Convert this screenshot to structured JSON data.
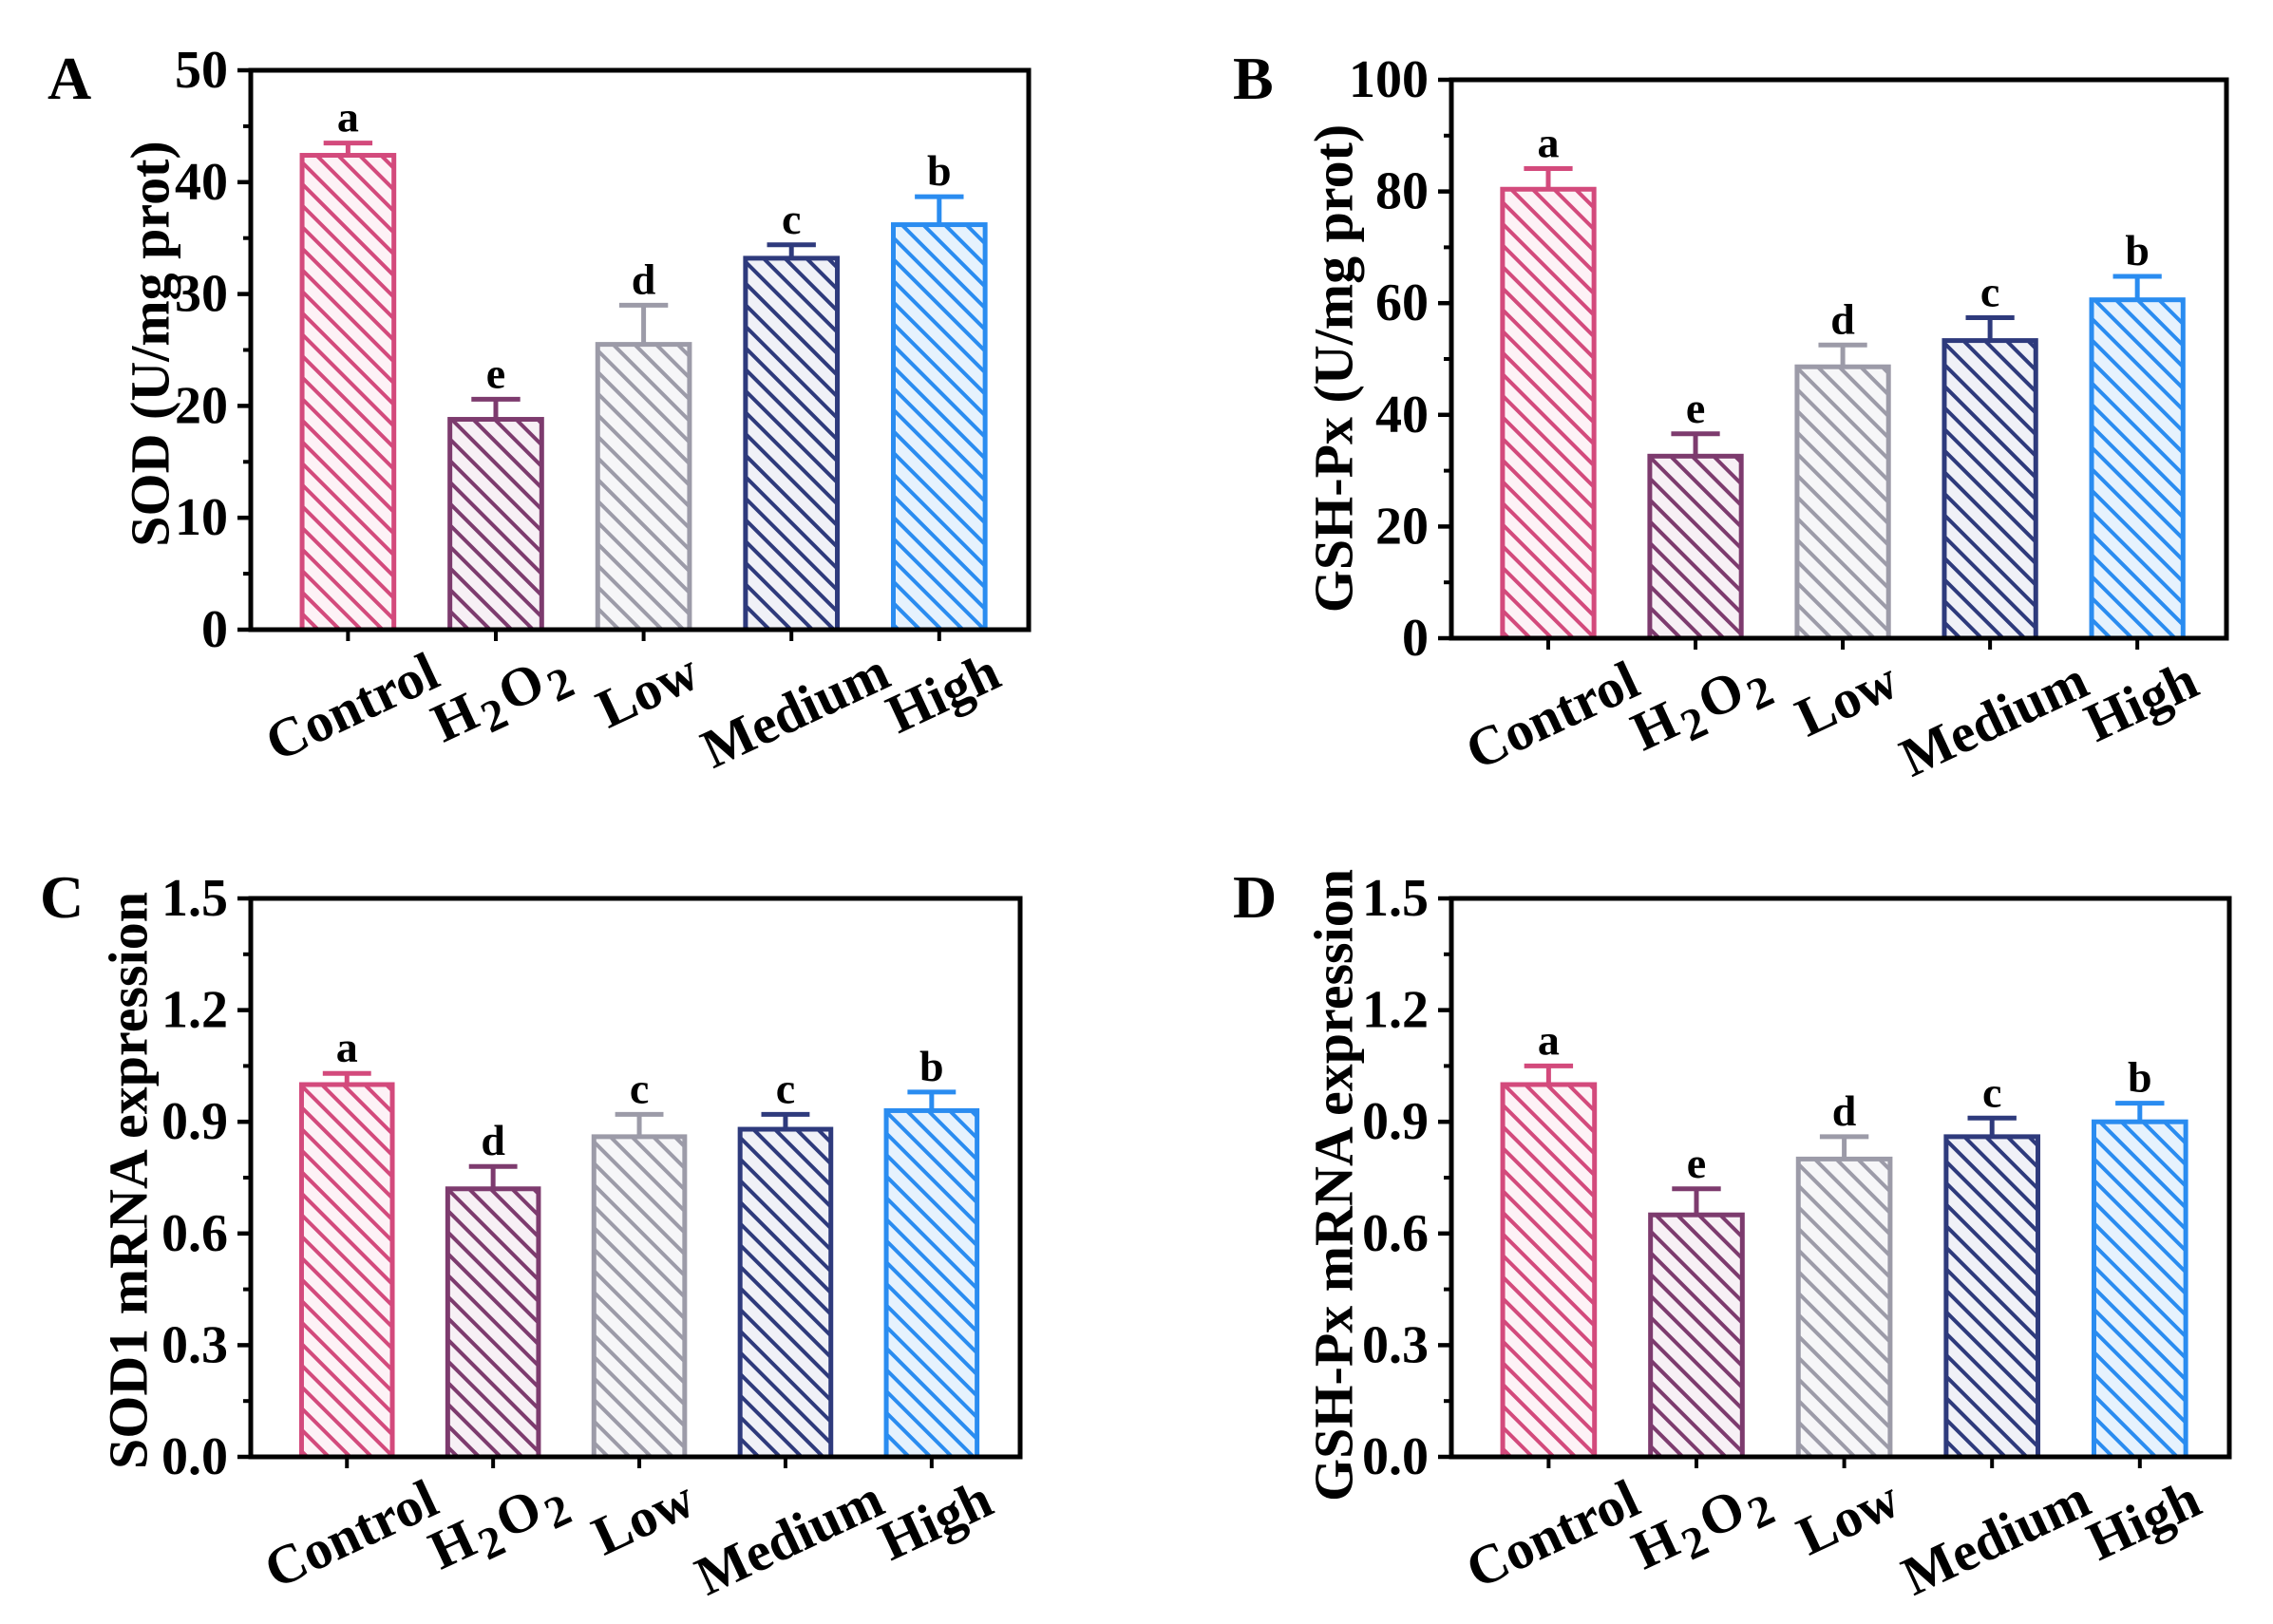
{
  "chart_data": [
    {
      "type": "bar",
      "panel_label": "A",
      "ylabel": "SOD (U/mg prot)",
      "categories": [
        "Control",
        "H2O2",
        "Low",
        "Medium",
        "High"
      ],
      "values": [
        42.4,
        18.8,
        25.5,
        33.2,
        36.2
      ],
      "error_upper": [
        1.1,
        1.8,
        3.5,
        1.2,
        2.5
      ],
      "significance_letters": [
        "a",
        "e",
        "d",
        "c",
        "b"
      ],
      "ylim": [
        0,
        50
      ],
      "yticks": [
        0,
        10,
        20,
        30,
        40,
        50
      ],
      "ytick_labels": [
        "0",
        "10",
        "20",
        "30",
        "40",
        "50"
      ],
      "bar_colors": [
        "#d34a7c",
        "#7d3b6e",
        "#9c9ba8",
        "#2e3a7c",
        "#2a8cf0"
      ],
      "bar_fill_colors": [
        "#fdf2f6",
        "#f7f0f5",
        "#f6f6f8",
        "#f0f1f7",
        "#e6f2fd"
      ],
      "fill_pattern": "diagonal-hatch",
      "grid": false,
      "legend": "none"
    },
    {
      "type": "bar",
      "panel_label": "B",
      "ylabel": "GSH-Px (U/mg prot)",
      "categories": [
        "Control",
        "H2O2",
        "Low",
        "Medium",
        "High"
      ],
      "values": [
        80.4,
        32.6,
        48.6,
        53.3,
        60.6
      ],
      "error_upper": [
        3.7,
        4.0,
        3.9,
        4.1,
        4.2
      ],
      "significance_letters": [
        "a",
        "e",
        "d",
        "c",
        "b"
      ],
      "ylim": [
        0,
        100
      ],
      "yticks": [
        0,
        20,
        40,
        60,
        80,
        100
      ],
      "ytick_labels": [
        "0",
        "20",
        "40",
        "60",
        "80",
        "100"
      ],
      "bar_colors": [
        "#d34a7c",
        "#7d3b6e",
        "#9c9ba8",
        "#2e3a7c",
        "#2a8cf0"
      ],
      "bar_fill_colors": [
        "#fdf2f6",
        "#f7f0f5",
        "#f6f6f8",
        "#f0f1f7",
        "#e6f2fd"
      ],
      "fill_pattern": "diagonal-hatch",
      "grid": false,
      "legend": "none"
    },
    {
      "type": "bar",
      "panel_label": "C",
      "ylabel": "SOD1 mRNA expression",
      "categories": [
        "Control",
        "H2O2",
        "Low",
        "Medium",
        "High"
      ],
      "values": [
        1.0,
        0.72,
        0.86,
        0.88,
        0.93
      ],
      "error_upper": [
        0.03,
        0.06,
        0.06,
        0.04,
        0.05
      ],
      "significance_letters": [
        "a",
        "d",
        "c",
        "c",
        "b"
      ],
      "ylim": [
        0,
        1.5
      ],
      "yticks": [
        0,
        0.3,
        0.6,
        0.9,
        1.2,
        1.5
      ],
      "ytick_labels": [
        "0.0",
        "0.3",
        "0.6",
        "0.9",
        "1.2",
        "1.5"
      ],
      "bar_colors": [
        "#d34a7c",
        "#7d3b6e",
        "#9c9ba8",
        "#2e3a7c",
        "#2a8cf0"
      ],
      "bar_fill_colors": [
        "#fdf2f6",
        "#f7f0f5",
        "#f6f6f8",
        "#f0f1f7",
        "#e6f2fd"
      ],
      "fill_pattern": "diagonal-hatch",
      "grid": false,
      "legend": "none"
    },
    {
      "type": "bar",
      "panel_label": "D",
      "ylabel": "GSH-Px mRNA expression",
      "categories": [
        "Control",
        "H2O2",
        "Low",
        "Medium",
        "High"
      ],
      "values": [
        1.0,
        0.65,
        0.8,
        0.86,
        0.9
      ],
      "error_upper": [
        0.05,
        0.07,
        0.06,
        0.05,
        0.05
      ],
      "significance_letters": [
        "a",
        "e",
        "d",
        "c",
        "b"
      ],
      "ylim": [
        0,
        1.5
      ],
      "yticks": [
        0,
        0.3,
        0.6,
        0.9,
        1.2,
        1.5
      ],
      "ytick_labels": [
        "0.0",
        "0.3",
        "0.6",
        "0.9",
        "1.2",
        "1.5"
      ],
      "bar_colors": [
        "#d34a7c",
        "#7d3b6e",
        "#9c9ba8",
        "#2e3a7c",
        "#2a8cf0"
      ],
      "bar_fill_colors": [
        "#fdf2f6",
        "#f7f0f5",
        "#f6f6f8",
        "#f0f1f7",
        "#e6f2fd"
      ],
      "fill_pattern": "diagonal-hatch",
      "grid": false,
      "legend": "none"
    }
  ]
}
